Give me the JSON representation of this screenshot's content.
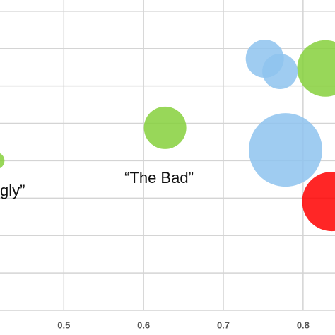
{
  "chart_data": {
    "type": "scatter",
    "xlim": [
      0.42,
      0.84
    ],
    "xticks": [
      0.5,
      0.6,
      0.7,
      0.8
    ],
    "ylim": [
      0,
      8.3
    ],
    "yticks": [
      1,
      2,
      3,
      4,
      5,
      6,
      7,
      8
    ],
    "grid": true,
    "series": [
      {
        "color": "#86d03c",
        "x": [
          0.415,
          0.627,
          0.828
        ],
        "values": [
          4.0,
          4.88,
          6.47
        ],
        "sizes": [
          12,
          30,
          40
        ]
      },
      {
        "color": "#8ec3ee",
        "x": [
          0.752,
          0.771,
          0.778
        ],
        "values": [
          6.73,
          6.39,
          4.29
        ],
        "sizes": [
          27,
          25,
          52
        ]
      },
      {
        "color": "#ff0000",
        "x": [
          0.836
        ],
        "values": [
          2.91
        ],
        "sizes": [
          42
        ]
      }
    ],
    "annotations": [
      "“The Bad”",
      "gly”"
    ]
  }
}
